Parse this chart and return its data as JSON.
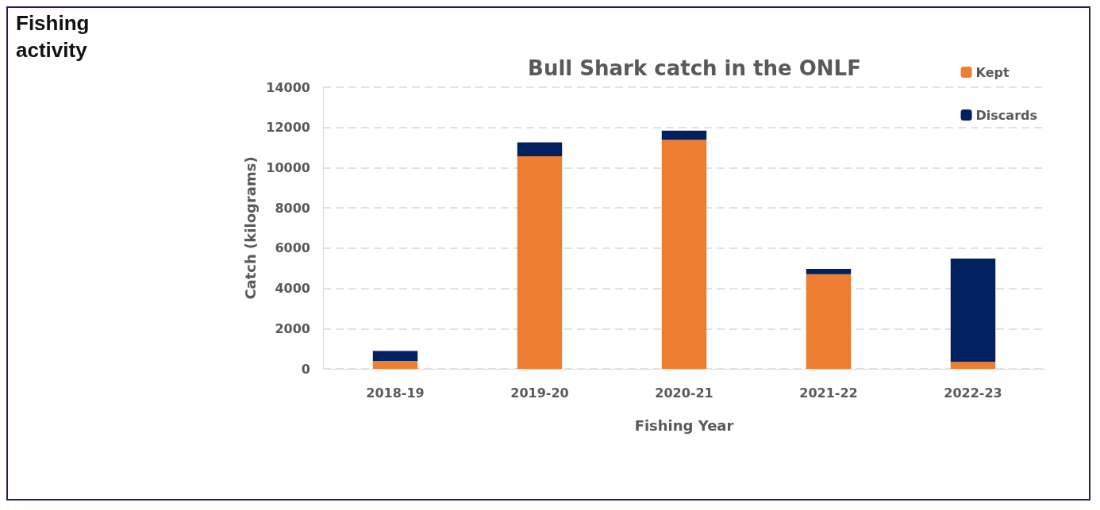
{
  "chart_data": {
    "type": "bar",
    "title": "Bull Shark catch in the ONLF",
    "annotations": [
      "Fishing activity"
    ],
    "xlabel": "Fishing Year",
    "ylabel": "Catch (kilograms)",
    "categories": [
      "2018-19",
      "2019-20",
      "2020-21",
      "2021-22",
      "2022-23"
    ],
    "series": [
      {
        "name": "Kept",
        "color": "#ed7d31",
        "values": [
          390,
          10570,
          11390,
          4700,
          350
        ]
      },
      {
        "name": "Discards",
        "color": "#002060",
        "values": [
          500,
          690,
          450,
          270,
          5130
        ]
      }
    ],
    "stacked": true,
    "ylim": [
      0,
      14000
    ],
    "yticks": [
      0,
      2000,
      4000,
      6000,
      8000,
      10000,
      12000,
      14000
    ],
    "grid": "y",
    "legend": "top right"
  }
}
